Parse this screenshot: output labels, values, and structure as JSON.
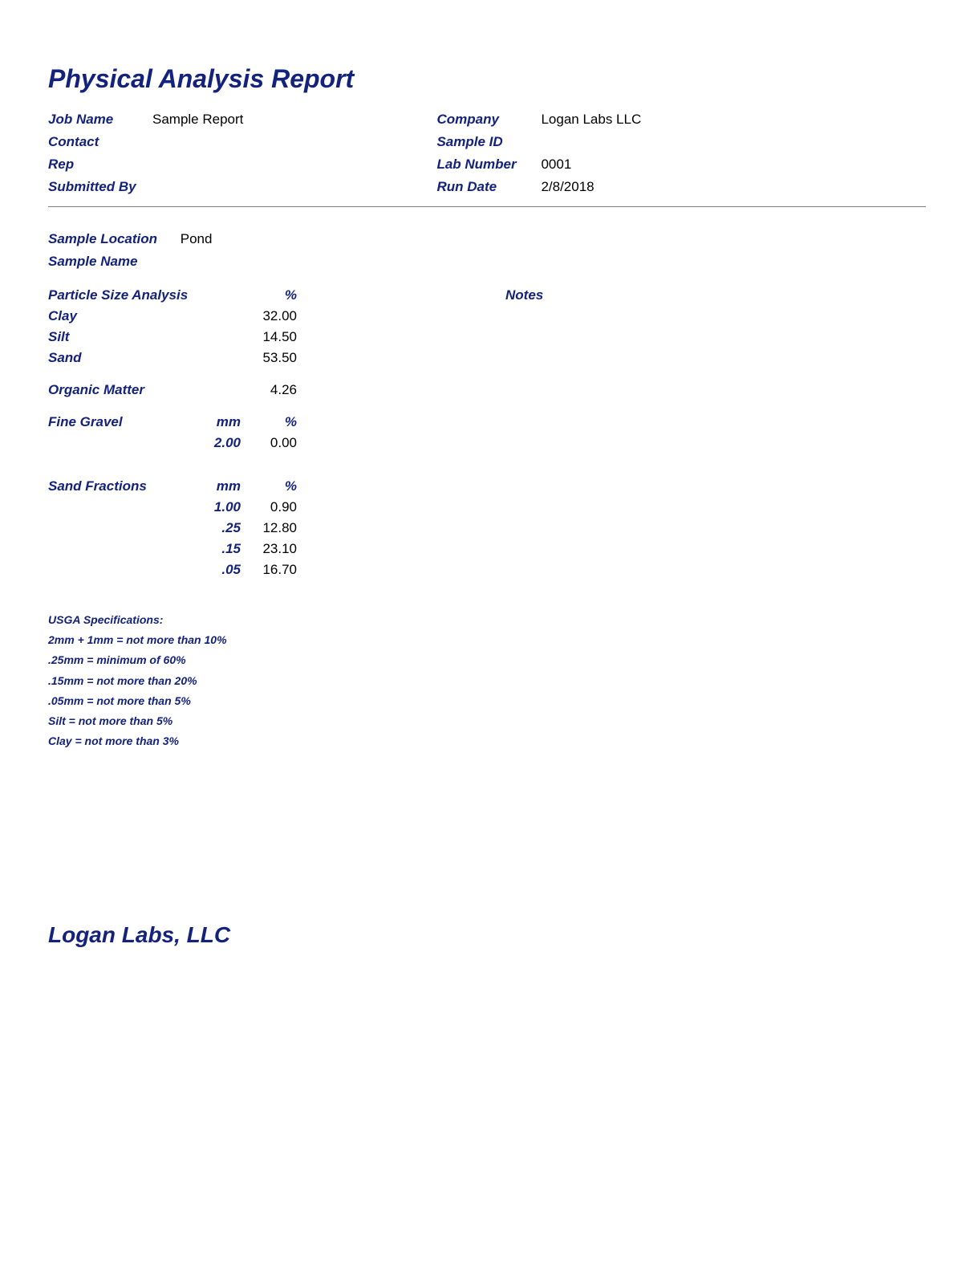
{
  "colors": {
    "label": "#13227c",
    "value": "#000000",
    "divider": "#808080",
    "background": "#ffffff"
  },
  "fonts": {
    "title_size_pt": 24,
    "body_size_pt": 13,
    "spec_size_pt": 11,
    "footer_size_pt": 21,
    "family": "Arial"
  },
  "title": "Physical Analysis Report",
  "header": {
    "left": {
      "job_name_label": "Job Name",
      "job_name_value": "Sample Report",
      "contact_label": "Contact",
      "contact_value": "",
      "rep_label": "Rep",
      "rep_value": "",
      "submitted_by_label": "Submitted By",
      "submitted_by_value": ""
    },
    "right": {
      "company_label": "Company",
      "company_value": "Logan Labs LLC",
      "sample_id_label": "Sample ID",
      "sample_id_value": "",
      "lab_number_label": "Lab Number",
      "lab_number_value": "0001",
      "run_date_label": "Run Date",
      "run_date_value": "2/8/2018"
    }
  },
  "sample": {
    "location_label": "Sample Location",
    "location_value": "Pond",
    "name_label": "Sample Name",
    "name_value": ""
  },
  "notes_label": "Notes",
  "particle_size": {
    "heading": "Particle Size Analysis",
    "pct_label": "%",
    "rows": [
      {
        "label": "Clay",
        "value": "32.00"
      },
      {
        "label": "Silt",
        "value": "14.50"
      },
      {
        "label": "Sand",
        "value": "53.50"
      }
    ]
  },
  "organic_matter": {
    "label": "Organic Matter",
    "value": "4.26"
  },
  "fine_gravel": {
    "heading": "Fine Gravel",
    "mm_label": "mm",
    "pct_label": "%",
    "rows": [
      {
        "mm": "2.00",
        "value": "0.00"
      }
    ]
  },
  "sand_fractions": {
    "heading": "Sand Fractions",
    "mm_label": "mm",
    "pct_label": "%",
    "rows": [
      {
        "mm": "1.00",
        "value": "0.90"
      },
      {
        "mm": ".25",
        "value": "12.80"
      },
      {
        "mm": ".15",
        "value": "23.10"
      },
      {
        "mm": ".05",
        "value": "16.70"
      }
    ]
  },
  "usga": {
    "heading": "USGA Specifications:",
    "lines": [
      "2mm + 1mm = not more than 10%",
      ".25mm = minimum of 60%",
      ".15mm = not more than 20%",
      ".05mm = not more than 5%",
      "Silt = not more than 5%",
      "Clay = not more than 3%"
    ]
  },
  "footer": {
    "company": "Logan Labs, LLC"
  }
}
